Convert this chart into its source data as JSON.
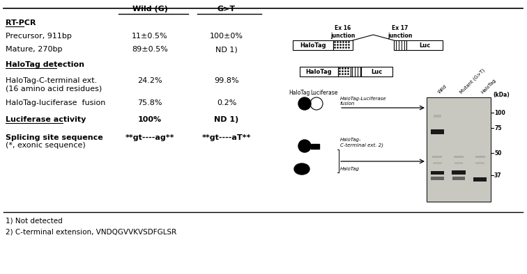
{
  "col1_header": "Wild (G)",
  "col2_header": "G>T",
  "row_labels": [
    "RT-PCR",
    "Precursor, 911bp",
    "Mature, 270bp",
    "HaloTag detection",
    "HaloTag-C-terminal ext.\n(16 amino acid residues)",
    "HaloTag-luciferase  fusion",
    "Luciferase activity",
    "Splicing site sequence\n(*, exonic sequence)"
  ],
  "row_bold": [
    true,
    false,
    false,
    true,
    false,
    false,
    true,
    true
  ],
  "row_underline": [
    true,
    false,
    false,
    true,
    false,
    false,
    true,
    false
  ],
  "col1_vals": [
    "",
    "11±0.5%",
    "89±0.5%",
    "",
    "24.2%",
    "75.8%",
    "100%",
    "**gt----ag**"
  ],
  "col2_vals": [
    "",
    "100±0%",
    "ND 1)",
    "",
    "99.8%",
    "0.2%",
    "ND 1)",
    "**gt----aT**"
  ],
  "footnotes": [
    "1) Not detected",
    "2) C-terminal extension, VNDQGVVKVSDFGLSR"
  ],
  "lane_labels": [
    "Wild",
    "Mutant (G>T)",
    "HaloTag"
  ],
  "kda_labels": [
    "100",
    "75",
    "50",
    "37"
  ],
  "background_color": "#ffffff"
}
